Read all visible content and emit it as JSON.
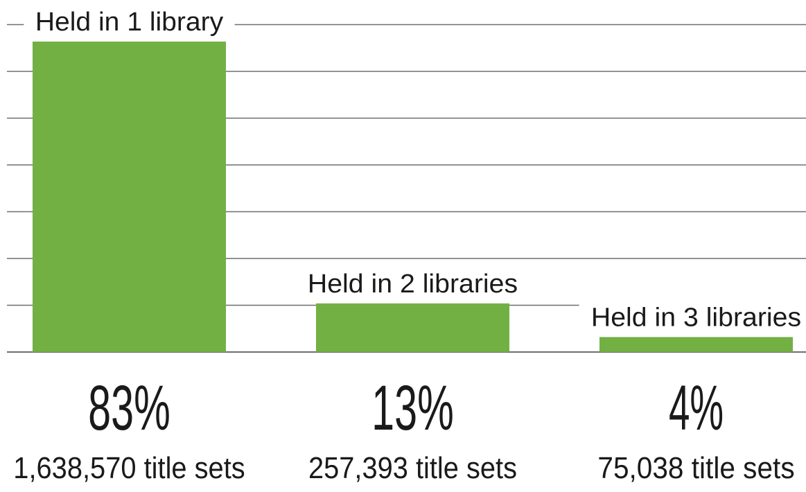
{
  "chart_data": {
    "type": "bar",
    "categories": [
      "Held in 1 library",
      "Held in 2 libraries",
      "Held in 3 libraries"
    ],
    "values": [
      83,
      13,
      4
    ],
    "value_labels": [
      "83%",
      "13%",
      "4%"
    ],
    "counts": [
      "1,638,570 title sets",
      "257,393 title sets",
      "75,038 title sets"
    ],
    "ylim": [
      0,
      88
    ],
    "grid": true,
    "gridline_count": 7,
    "bar_color": "#72b044",
    "gridline_color": "#6e6e6e",
    "text_color": "#1a1a1a"
  }
}
